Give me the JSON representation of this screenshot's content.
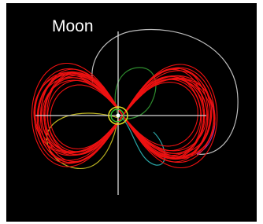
{
  "label": "Moon"
}
